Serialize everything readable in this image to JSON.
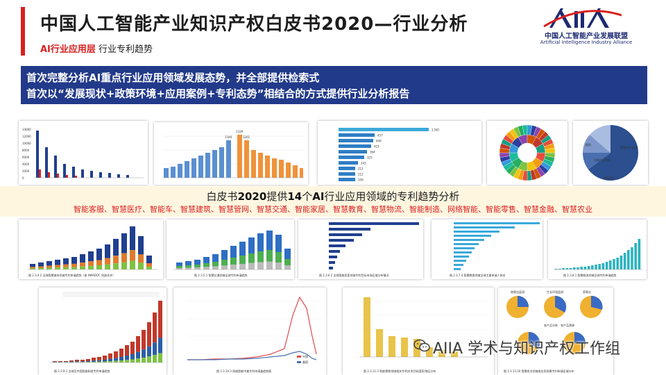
{
  "header": {
    "title": "中国人工智能产业知识产权白皮书2020—行业分析",
    "section_label": "AI行业应用层",
    "section_sub": "行业专利趋势",
    "logo_name_cn": "中国人工智能产业发展联盟",
    "logo_name_en": "Artificial Intelligence Industry Alliance"
  },
  "banner": {
    "line1": "首次完整分析AI重点行业应用领域发展态势，并全部提供检索式",
    "line2": "首次以“发展现状+政策环境+应用案例+专利态势”相结合的方式提供行业分析报告"
  },
  "strip": {
    "line1_pre": "白皮书",
    "line1_bold": "2020",
    "line1_mid": "提供",
    "line1_bold2": "14",
    "line1_mid2": "个",
    "line1_bold3": "AI",
    "line1_post": "行业应用领域的专利趋势分析",
    "line2": "智能客服、智慧医疗、智能车、智慧建筑、智慧管网、智慧交通、智能家居、智慧教育、智慧物流、智能制造、网络智能、智能零售、智慧金融、智慧农业"
  },
  "watermark": {
    "text": "AIIA 学术与知识产权工作组",
    "icon": "wechat-icon"
  },
  "thumbnails": {
    "t2_labels": [
      "1340",
      "1339",
      "1261"
    ],
    "t3_labels": [
      "1,581",
      "457",
      "449",
      "419",
      "364",
      "325",
      "243",
      "212",
      "212",
      "209"
    ],
    "t3_colors": [
      "#3ba9d9",
      "#2f7ec4"
    ],
    "t5_labels": [
      "智慧医疗-应用",
      "保险",
      "金融产品营销",
      "智慧风控"
    ],
    "caption_r2_1": "图 2.3.4.2  全球智慧城市领域专利申请趋势（按 INPADOC 同族合并）",
    "caption_r2_2": "图 2.3.5.1  智慧交通领域全球专利申请趋势",
    "caption_r2_3": "图 2.3.6.2  全球智能家居领域专利目标市场区域分布情况",
    "caption_r2_4": "图 2.3.7.4  智慧教育领域全球主要申请人排名",
    "caption_r2_5": "图 2.3.8.1  智慧物流领域全球专利申请趋势",
    "caption_r3_1": "图 2.3.9.1  全球及中国智能制造专利申请趋势",
    "caption_r3_2": "图 2.3.10.3  网络智能中美专利申请量趋势图",
    "caption_r3_3": "图 2.3.11.3  智能零售领域相关专利技术目标国家/地区分布",
    "caption_r3_4": "图 2.3.13.10  智慧农业领域各应用场景专利申请区域分布",
    "r3_2_legend": [
      "中国",
      "美国"
    ],
    "r3_4_titles": [
      "病害虫监测",
      "生长环境监测",
      "养殖业",
      "农产品分拣",
      "农产品溯源"
    ],
    "t1_yticks": [
      "14000",
      "12000",
      "10000",
      "8000",
      "6000",
      "4000",
      "2000",
      "0"
    ]
  }
}
